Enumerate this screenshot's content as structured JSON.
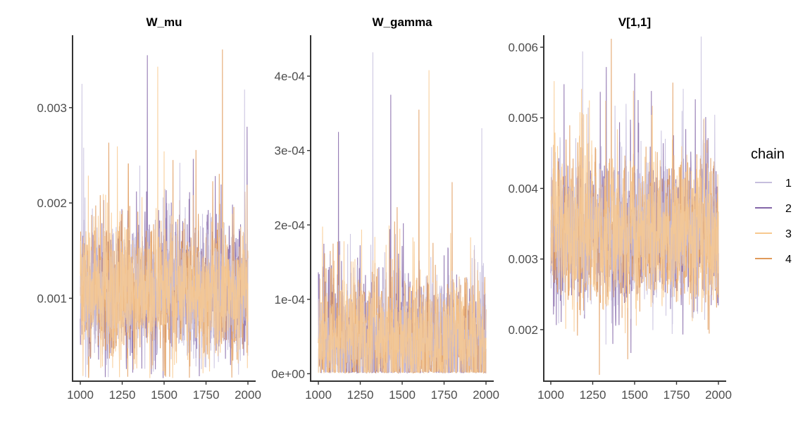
{
  "chart_data": [
    {
      "type": "line",
      "title": "W_mu",
      "xlim": [
        1000,
        2000
      ],
      "ylim": [
        0.00013,
        0.00376
      ],
      "x_ticks": [
        1000,
        1250,
        1500,
        1750,
        2000
      ],
      "x_tick_labels": [
        "1000",
        "1250",
        "1500",
        "1750",
        "2000"
      ],
      "y_ticks": [
        0.001,
        0.002,
        0.003
      ],
      "y_tick_labels": [
        "0.001",
        "0.002",
        "0.003"
      ],
      "trace": {
        "center": 0.00107,
        "spread": 0.00033,
        "floor": 0.00016,
        "spikes": [
          [
            1010,
            0.00325
          ],
          [
            1400,
            0.00355
          ],
          [
            1462,
            0.00343
          ],
          [
            1848,
            0.00361
          ],
          [
            1980,
            0.00319
          ],
          [
            1995,
            0.0028
          ]
        ]
      },
      "series": [
        {
          "name": "1"
        },
        {
          "name": "2"
        },
        {
          "name": "3"
        },
        {
          "name": "4"
        }
      ]
    },
    {
      "type": "line",
      "title": "W_gamma",
      "xlim": [
        1000,
        2000
      ],
      "ylim": [
        -1e-05,
        0.000455
      ],
      "x_ticks": [
        1000,
        1250,
        1500,
        1750,
        2000
      ],
      "x_tick_labels": [
        "1000",
        "1250",
        "1500",
        "1750",
        "2000"
      ],
      "y_ticks": [
        0,
        0.0001,
        0.0002,
        0.0003,
        0.0004
      ],
      "y_tick_labels": [
        "0e+00",
        "1e-04",
        "2e-04",
        "3e-04",
        "4e-04"
      ],
      "trace": {
        "center": 4.5e-05,
        "spread": 4e-05,
        "floor": 1e-06,
        "spikes": [
          [
            1325,
            0.000432
          ],
          [
            1432,
            0.000375
          ],
          [
            1660,
            0.000408
          ],
          [
            1600,
            0.000355
          ],
          [
            1975,
            0.00033
          ],
          [
            1120,
            0.000325
          ]
        ]
      },
      "series": [
        {
          "name": "1"
        },
        {
          "name": "2"
        },
        {
          "name": "3"
        },
        {
          "name": "4"
        }
      ]
    },
    {
      "type": "line",
      "title": "V[1,1]",
      "xlim": [
        1000,
        2000
      ],
      "ylim": [
        0.00127,
        0.00617
      ],
      "x_ticks": [
        1000,
        1250,
        1500,
        1750,
        2000
      ],
      "x_tick_labels": [
        "1000",
        "1250",
        "1500",
        "1750",
        "2000"
      ],
      "y_ticks": [
        0.002,
        0.003,
        0.004,
        0.005,
        0.006
      ],
      "y_tick_labels": [
        "0.002",
        "0.003",
        "0.004",
        "0.005",
        "0.006"
      ],
      "trace": {
        "center": 0.00335,
        "spread": 0.00048,
        "floor": 0.00135,
        "spikes": [
          [
            1190,
            0.00594
          ],
          [
            1500,
            0.00563
          ],
          [
            1020,
            0.00552
          ],
          [
            1290,
            0.00136
          ],
          [
            1790,
            0.00541
          ],
          [
            1600,
            0.00538
          ]
        ]
      },
      "series": [
        {
          "name": "1"
        },
        {
          "name": "2"
        },
        {
          "name": "3"
        },
        {
          "name": "4"
        }
      ]
    }
  ],
  "legend": {
    "title": "chain",
    "placement": "right",
    "items": [
      {
        "label": "1",
        "color": "#c6bedd"
      },
      {
        "label": "2",
        "color": "#8466a8"
      },
      {
        "label": "3",
        "color": "#f8c98f"
      },
      {
        "label": "4",
        "color": "#e09a5a"
      }
    ]
  }
}
